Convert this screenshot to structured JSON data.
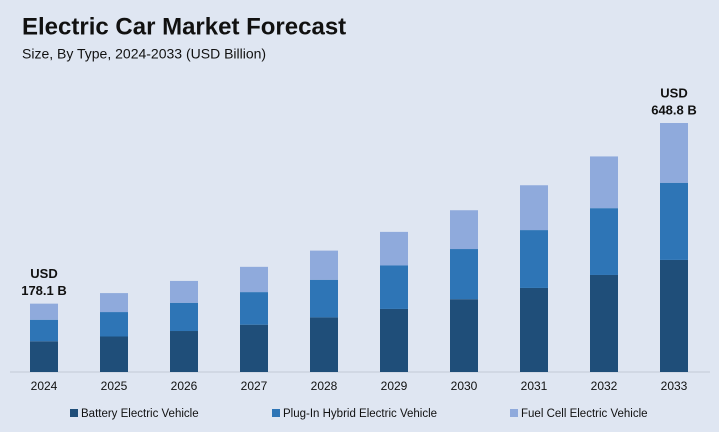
{
  "chart_data": {
    "type": "stacked_bar",
    "title": "Electric Car Market Forecast",
    "subtitle": "Size, By Type, 2024-2033 (USD Billion)",
    "categories": [
      "2024",
      "2025",
      "2026",
      "2027",
      "2028",
      "2029",
      "2030",
      "2031",
      "2032",
      "2033"
    ],
    "series": [
      {
        "name": "Battery Electric Vehicle",
        "color": "#1f4e79",
        "values": [
          80.1,
          92.5,
          106.8,
          123.3,
          142.3,
          164.3,
          189.7,
          219.0,
          252.8,
          292.0
        ]
      },
      {
        "name": "Plug-In Hybrid Electric Vehicle",
        "color": "#2e75b6",
        "values": [
          56.1,
          63.7,
          73.6,
          84.9,
          98.1,
          113.2,
          130.7,
          150.8,
          174.1,
          201.1
        ]
      },
      {
        "name": "Fuel Cell Electric Vehicle",
        "color": "#8faadc",
        "values": [
          41.9,
          49.4,
          56.9,
          65.8,
          75.9,
          87.6,
          101.1,
          116.8,
          134.8,
          155.7
        ]
      }
    ],
    "annotations": [
      {
        "category": "2024",
        "lines": [
          "USD",
          "178.1 B"
        ]
      },
      {
        "category": "2033",
        "lines": [
          "USD",
          "648.8 B"
        ]
      }
    ],
    "legend": "bottom"
  }
}
